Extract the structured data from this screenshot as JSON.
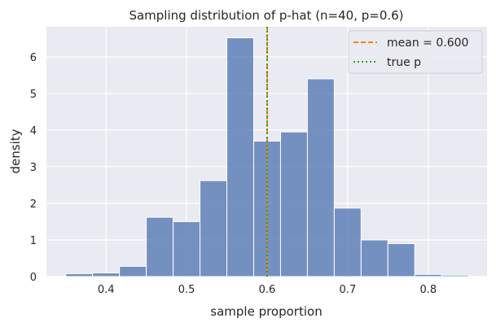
{
  "chart_data": {
    "type": "bar",
    "title": "Sampling distribution of p-hat (n=40, p=0.6)",
    "xlabel": "sample proportion",
    "ylabel": "density",
    "bin_edges_start": 0.35,
    "bin_width": 0.03333,
    "values": [
      0.08,
      0.1,
      0.28,
      1.62,
      1.5,
      2.62,
      6.52,
      3.7,
      3.95,
      5.4,
      1.87,
      1.0,
      0.9,
      0.06,
      0.04
    ],
    "xlim": [
      0.326,
      0.873
    ],
    "ylim": [
      0,
      6.82
    ],
    "xticks": [
      "0.4",
      "0.5",
      "0.6",
      "0.7",
      "0.8"
    ],
    "xtick_values": [
      0.4,
      0.5,
      0.6,
      0.7,
      0.8
    ],
    "yticks": [
      "0",
      "1",
      "2",
      "3",
      "4",
      "5",
      "6"
    ],
    "ytick_values": [
      0,
      1,
      2,
      3,
      4,
      5,
      6
    ],
    "grid": true,
    "lines": [
      {
        "name": "mean = 0.600",
        "x": 0.6,
        "style": "dashed",
        "color": "#ff7f0e"
      },
      {
        "name": "true p",
        "x": 0.6,
        "style": "dotted",
        "color": "#2ca02c"
      }
    ],
    "legend_position": "top-right",
    "bar_color": "#4c72b0",
    "background": "#eaeaf2"
  }
}
